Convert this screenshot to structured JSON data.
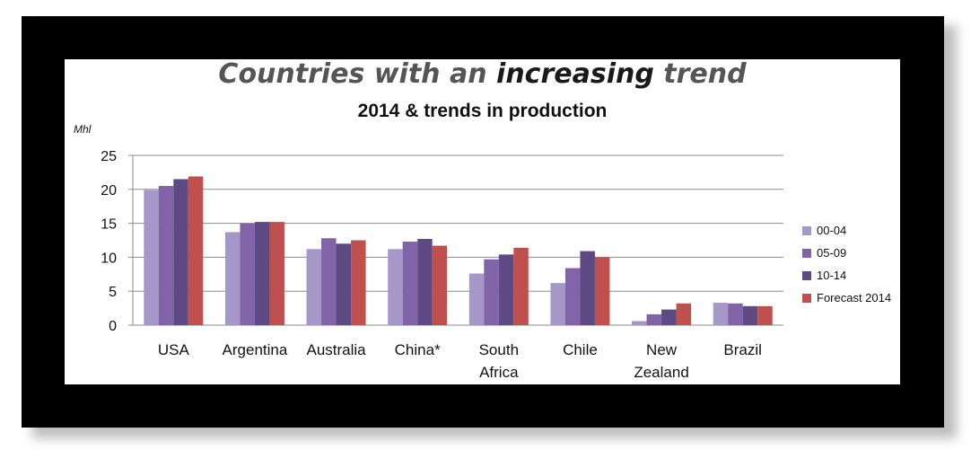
{
  "header": {
    "title_part1": "Countries with an ",
    "title_emph": "increasing",
    "title_part2": " trend"
  },
  "chart_data": {
    "type": "bar",
    "title": "2014 & trends in production",
    "ylabel": "Mhl",
    "xlabel": "",
    "ylim": [
      0,
      25
    ],
    "yticks": [
      0,
      5,
      10,
      15,
      20,
      25
    ],
    "grid": true,
    "legend_position": "right",
    "categories": [
      [
        "USA"
      ],
      [
        "Argentina"
      ],
      [
        "Australia"
      ],
      [
        "China*"
      ],
      [
        "South",
        "Africa"
      ],
      [
        "Chile"
      ],
      [
        "New",
        "Zealand"
      ],
      [
        "Brazil"
      ]
    ],
    "series": [
      {
        "name": "00-04",
        "color": "#a597c7",
        "values": [
          19.9,
          13.7,
          11.2,
          11.2,
          7.6,
          6.2,
          0.6,
          3.3
        ]
      },
      {
        "name": "05-09",
        "color": "#8163a8",
        "values": [
          20.5,
          15.0,
          12.8,
          12.3,
          9.7,
          8.4,
          1.6,
          3.2
        ]
      },
      {
        "name": "10-14",
        "color": "#5e4a82",
        "values": [
          21.5,
          15.2,
          12.0,
          12.7,
          10.4,
          10.9,
          2.3,
          2.8
        ]
      },
      {
        "name": "Forecast 2014",
        "color": "#c0504d",
        "values": [
          21.9,
          15.2,
          12.5,
          11.7,
          11.4,
          10.0,
          3.2,
          2.8
        ]
      }
    ]
  }
}
